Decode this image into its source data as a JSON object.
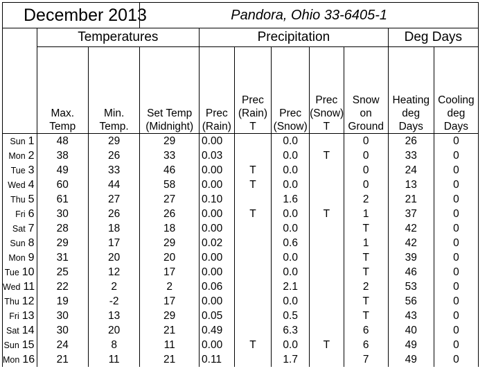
{
  "header": {
    "month_title": "December 2013",
    "station": "Pandora, Ohio 33-6405-1"
  },
  "groups": {
    "temperatures": "Temperatures",
    "precipitation": "Precipitation",
    "deg_days": "Deg Days"
  },
  "columns": [
    {
      "lines": [
        "Max.",
        "Temp"
      ]
    },
    {
      "lines": [
        "Min.",
        "Temp."
      ]
    },
    {
      "lines": [
        "Set Temp",
        "(Midnight)"
      ]
    },
    {
      "lines": [
        "Prec",
        "(Rain)"
      ]
    },
    {
      "lines": [
        "Prec",
        "(Rain)",
        "T"
      ]
    },
    {
      "lines": [
        "Prec",
        "(Snow)"
      ]
    },
    {
      "lines": [
        "Prec",
        "(Snow)",
        "T"
      ]
    },
    {
      "lines": [
        "Snow",
        "on",
        "Ground"
      ]
    },
    {
      "lines": [
        "Heating",
        "deg",
        "Days"
      ]
    },
    {
      "lines": [
        "Cooling",
        "deg",
        "Days"
      ]
    }
  ],
  "rows": [
    {
      "dow": "Sun",
      "day": "1",
      "max": "48",
      "min": "29",
      "set": "29",
      "rain": "0.00",
      "rain_t": "",
      "snow": "0.0",
      "snow_t": "",
      "ground": "0",
      "hdd": "26",
      "cdd": "0"
    },
    {
      "dow": "Mon",
      "day": "2",
      "max": "38",
      "min": "26",
      "set": "33",
      "rain": "0.03",
      "rain_t": "",
      "snow": "0.0",
      "snow_t": "T",
      "ground": "0",
      "hdd": "33",
      "cdd": "0"
    },
    {
      "dow": "Tue",
      "day": "3",
      "max": "49",
      "min": "33",
      "set": "46",
      "rain": "0.00",
      "rain_t": "T",
      "snow": "0.0",
      "snow_t": "",
      "ground": "0",
      "hdd": "24",
      "cdd": "0"
    },
    {
      "dow": "Wed",
      "day": "4",
      "max": "60",
      "min": "44",
      "set": "58",
      "rain": "0.00",
      "rain_t": "T",
      "snow": "0.0",
      "snow_t": "",
      "ground": "0",
      "hdd": "13",
      "cdd": "0"
    },
    {
      "dow": "Thu",
      "day": "5",
      "max": "61",
      "min": "27",
      "set": "27",
      "rain": "0.10",
      "rain_t": "",
      "snow": "1.6",
      "snow_t": "",
      "ground": "2",
      "hdd": "21",
      "cdd": "0"
    },
    {
      "dow": "Fri",
      "day": "6",
      "max": "30",
      "min": "26",
      "set": "26",
      "rain": "0.00",
      "rain_t": "T",
      "snow": "0.0",
      "snow_t": "T",
      "ground": "1",
      "hdd": "37",
      "cdd": "0"
    },
    {
      "dow": "Sat",
      "day": "7",
      "max": "28",
      "min": "18",
      "set": "18",
      "rain": "0.00",
      "rain_t": "",
      "snow": "0.0",
      "snow_t": "",
      "ground": "T",
      "hdd": "42",
      "cdd": "0"
    },
    {
      "dow": "Sun",
      "day": "8",
      "max": "29",
      "min": "17",
      "set": "29",
      "rain": "0.02",
      "rain_t": "",
      "snow": "0.6",
      "snow_t": "",
      "ground": "1",
      "hdd": "42",
      "cdd": "0"
    },
    {
      "dow": "Mon",
      "day": "9",
      "max": "31",
      "min": "20",
      "set": "20",
      "rain": "0.00",
      "rain_t": "",
      "snow": "0.0",
      "snow_t": "",
      "ground": "T",
      "hdd": "39",
      "cdd": "0"
    },
    {
      "dow": "Tue",
      "day": "10",
      "max": "25",
      "min": "12",
      "set": "17",
      "rain": "0.00",
      "rain_t": "",
      "snow": "0.0",
      "snow_t": "",
      "ground": "T",
      "hdd": "46",
      "cdd": "0"
    },
    {
      "dow": "Wed",
      "day": "11",
      "max": "22",
      "min": "2",
      "set": "2",
      "rain": "0.06",
      "rain_t": "",
      "snow": "2.1",
      "snow_t": "",
      "ground": "2",
      "hdd": "53",
      "cdd": "0"
    },
    {
      "dow": "Thu",
      "day": "12",
      "max": "19",
      "min": "-2",
      "set": "17",
      "rain": "0.00",
      "rain_t": "",
      "snow": "0.0",
      "snow_t": "",
      "ground": "T",
      "hdd": "56",
      "cdd": "0"
    },
    {
      "dow": "Fri",
      "day": "13",
      "max": "30",
      "min": "13",
      "set": "29",
      "rain": "0.05",
      "rain_t": "",
      "snow": "0.5",
      "snow_t": "",
      "ground": "T",
      "hdd": "43",
      "cdd": "0"
    },
    {
      "dow": "Sat",
      "day": "14",
      "max": "30",
      "min": "20",
      "set": "21",
      "rain": "0.49",
      "rain_t": "",
      "snow": "6.3",
      "snow_t": "",
      "ground": "6",
      "hdd": "40",
      "cdd": "0"
    },
    {
      "dow": "Sun",
      "day": "15",
      "max": "24",
      "min": "8",
      "set": "11",
      "rain": "0.00",
      "rain_t": "T",
      "snow": "0.0",
      "snow_t": "T",
      "ground": "6",
      "hdd": "49",
      "cdd": "0"
    },
    {
      "dow": "Mon",
      "day": "16",
      "max": "21",
      "min": "11",
      "set": "21",
      "rain": "0.11",
      "rain_t": "",
      "snow": "1.7",
      "snow_t": "",
      "ground": "7",
      "hdd": "49",
      "cdd": "0"
    }
  ]
}
